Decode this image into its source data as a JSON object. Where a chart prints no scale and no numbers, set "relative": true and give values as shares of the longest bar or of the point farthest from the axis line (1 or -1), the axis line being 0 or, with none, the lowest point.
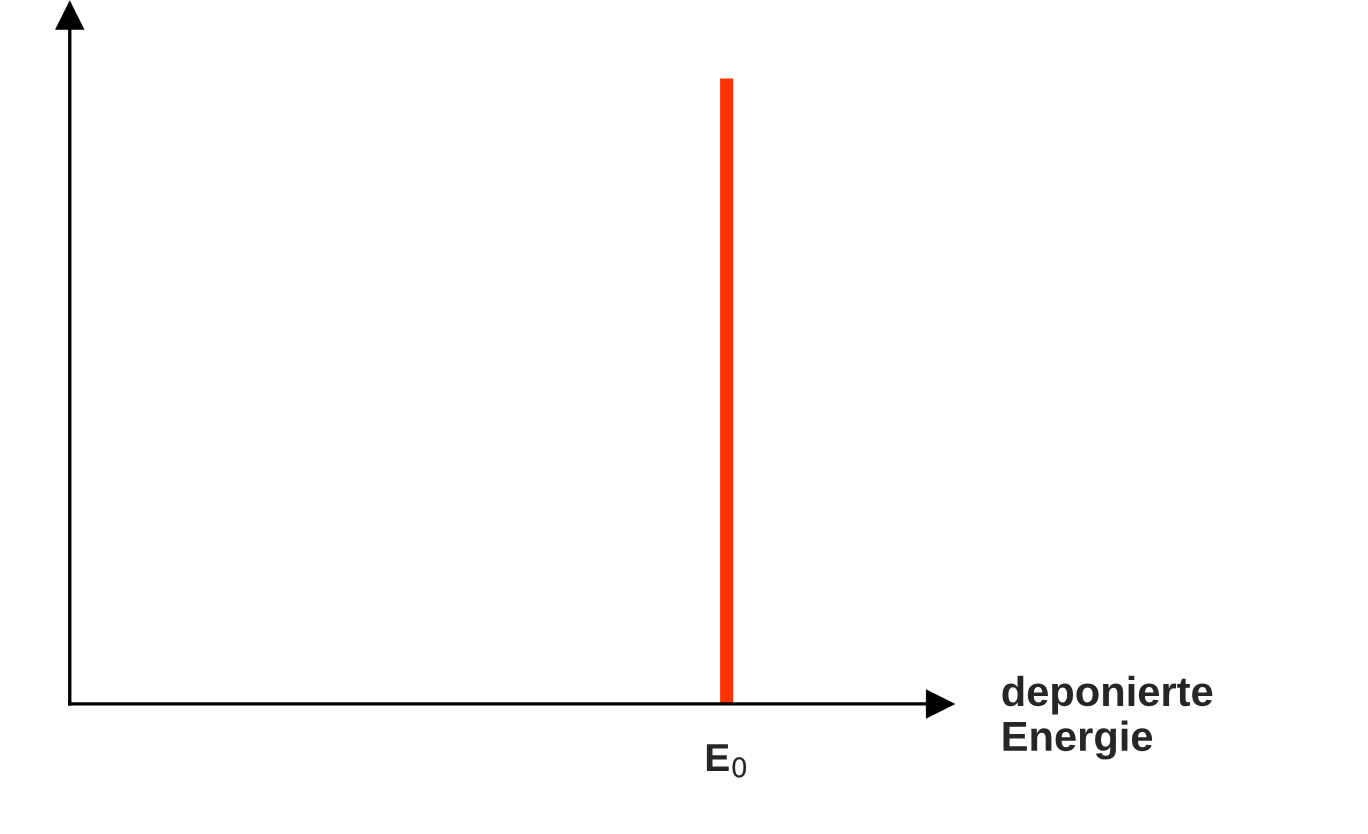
{
  "chart_data": {
    "type": "bar",
    "relative": true,
    "xlabel": "deponierte\nEnergie",
    "categories": [
      "E$_{0}$"
    ],
    "values": [
      1
    ],
    "color": "#ff3300",
    "grid": false,
    "legend": false
  }
}
